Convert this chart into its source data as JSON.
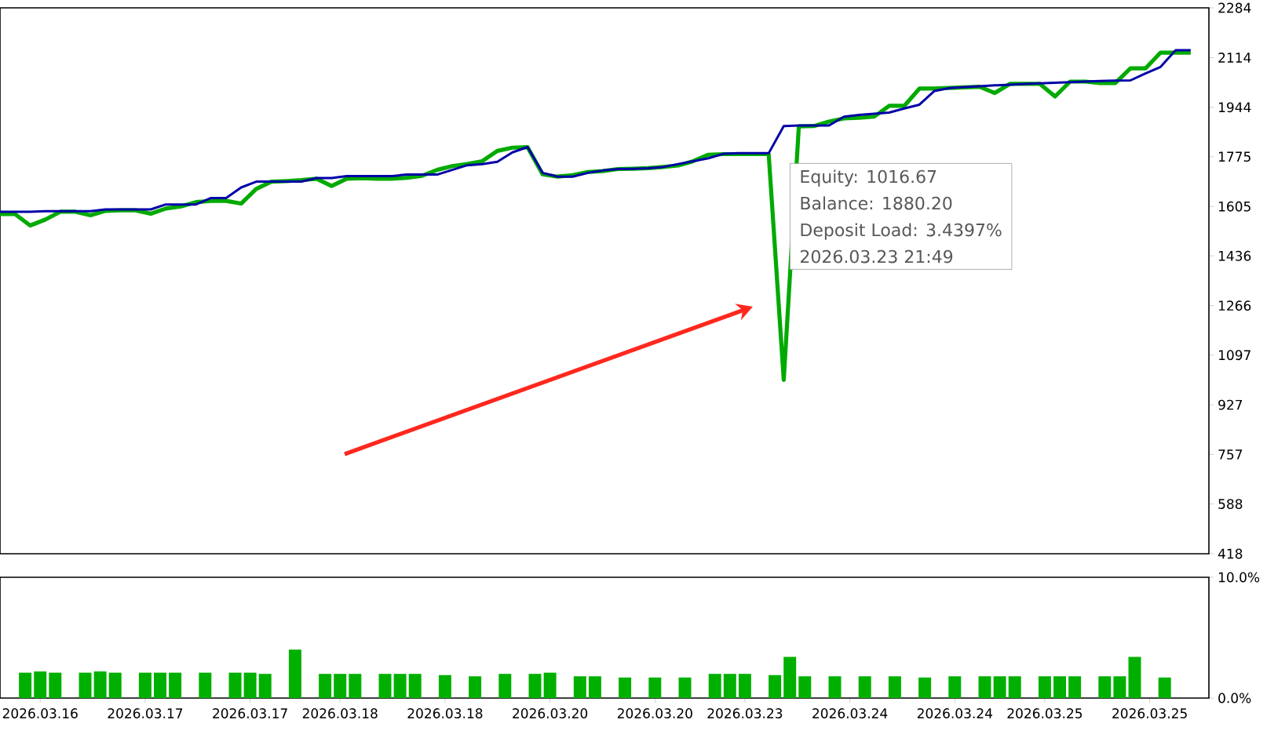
{
  "chart_data": [
    {
      "type": "line",
      "categories": [
        null,
        null,
        null,
        null,
        null,
        null,
        null,
        null,
        null,
        null,
        null,
        null,
        null,
        null,
        null,
        null,
        null,
        null,
        null,
        null,
        null,
        null,
        null,
        null,
        null,
        null,
        null,
        null,
        null,
        null,
        null,
        null,
        null,
        null,
        null,
        null,
        null,
        null,
        null,
        null,
        null,
        null,
        null,
        null,
        null,
        null,
        null,
        null,
        null,
        null,
        null,
        null,
        null,
        null,
        null,
        null,
        null,
        null,
        null,
        null,
        null,
        null,
        null,
        null,
        null,
        null,
        null,
        null,
        null,
        null,
        null,
        null,
        null,
        null,
        null,
        null,
        null,
        null,
        null,
        null
      ],
      "series": [
        {
          "color": "#00aa00",
          "values": [
            1579,
            1579,
            1540,
            1560,
            1587,
            1587,
            1575,
            1590,
            1592,
            1592,
            1580,
            1598,
            1605,
            1620,
            1624,
            1624,
            1615,
            1665,
            1690,
            1692,
            1695,
            1700,
            1675,
            1700,
            1702,
            1700,
            1700,
            1703,
            1710,
            1730,
            1743,
            1750,
            1760,
            1795,
            1806,
            1808,
            1715,
            1707,
            1712,
            1723,
            1726,
            1733,
            1734,
            1736,
            1740,
            1745,
            1760,
            1782,
            1784,
            1784,
            1784,
            1784,
            1012,
            1879,
            1880,
            1895,
            1906,
            1908,
            1912,
            1949,
            1949,
            2008,
            2008,
            2010,
            2012,
            2014,
            1993,
            2024,
            2024,
            2024,
            1981,
            2032,
            2032,
            2027,
            2027,
            2077,
            2077,
            2131,
            2131,
            2131
          ]
        },
        {
          "color": "#0000a8",
          "values": [
            1587,
            1587,
            1587,
            1589,
            1589,
            1589,
            1589,
            1595,
            1595,
            1595,
            1595,
            1612,
            1612,
            1612,
            1634,
            1634,
            1670,
            1690,
            1690,
            1690,
            1690,
            1702,
            1702,
            1709,
            1709,
            1709,
            1709,
            1714,
            1714,
            1714,
            1730,
            1746,
            1750,
            1758,
            1790,
            1808,
            1720,
            1707,
            1707,
            1720,
            1728,
            1733,
            1734,
            1736,
            1740,
            1750,
            1760,
            1770,
            1785,
            1787,
            1787,
            1787,
            1880,
            1882,
            1882,
            1882,
            1912,
            1918,
            1922,
            1926,
            1940,
            1953,
            2000,
            2010,
            2013,
            2016,
            2019,
            2021,
            2024,
            2026,
            2028,
            2030,
            2032,
            2034,
            2035,
            2036,
            2060,
            2082,
            2139,
            2139
          ]
        }
      ],
      "ylim": [
        418,
        2284
      ],
      "yticks": [
        418,
        588,
        757,
        927,
        1097,
        1266,
        1436,
        1605,
        1775,
        1944,
        2114,
        2284
      ],
      "tick_labels": "y",
      "annotations": [
        "Equity: 1016.67",
        "Balance: 1880.20",
        "Deposit Load: 3.4397%",
        "2026.03.23 21:49"
      ]
    },
    {
      "type": "bar",
      "categories": [
        null,
        null,
        "2026.03.16",
        null,
        null,
        null,
        null,
        null,
        null,
        "2026.03.17",
        null,
        null,
        null,
        null,
        null,
        null,
        "2026.03.17",
        null,
        null,
        null,
        null,
        null,
        "2026.03.18",
        null,
        null,
        null,
        null,
        null,
        null,
        "2026.03.18",
        null,
        null,
        null,
        null,
        null,
        null,
        "2026.03.20",
        null,
        null,
        null,
        null,
        null,
        null,
        "2026.03.20",
        null,
        null,
        null,
        null,
        null,
        "2026.03.23",
        null,
        null,
        null,
        null,
        null,
        null,
        "2026.03.24",
        null,
        null,
        null,
        null,
        null,
        null,
        "2026.03.24",
        null,
        null,
        null,
        null,
        null,
        "2026.03.25",
        null,
        null,
        null,
        null,
        null,
        null,
        "2026.03.25",
        null,
        null,
        null
      ],
      "values": [
        null,
        2.1,
        2.2,
        2.1,
        null,
        2.1,
        2.2,
        2.1,
        null,
        2.1,
        2.1,
        2.1,
        null,
        2.1,
        null,
        2.1,
        2.1,
        2.0,
        null,
        4.0,
        null,
        2.0,
        2.0,
        2.0,
        null,
        2.0,
        2.0,
        2.0,
        null,
        1.9,
        null,
        1.8,
        null,
        2.0,
        null,
        2.0,
        2.1,
        null,
        1.8,
        1.8,
        null,
        1.7,
        null,
        1.7,
        null,
        1.7,
        null,
        2.0,
        2.0,
        2.0,
        null,
        1.9,
        3.4,
        1.8,
        null,
        1.8,
        null,
        1.8,
        null,
        1.8,
        null,
        1.7,
        null,
        1.8,
        null,
        1.8,
        1.8,
        1.8,
        null,
        1.8,
        1.8,
        1.8,
        null,
        1.8,
        1.8,
        3.4,
        null,
        1.7,
        null,
        null
      ],
      "color": "#00b000",
      "ylim": [
        0,
        10
      ],
      "yticks": [
        {
          "value": 0,
          "label": "0.0%"
        },
        {
          "value": 10,
          "label": "10.0%"
        }
      ]
    }
  ]
}
